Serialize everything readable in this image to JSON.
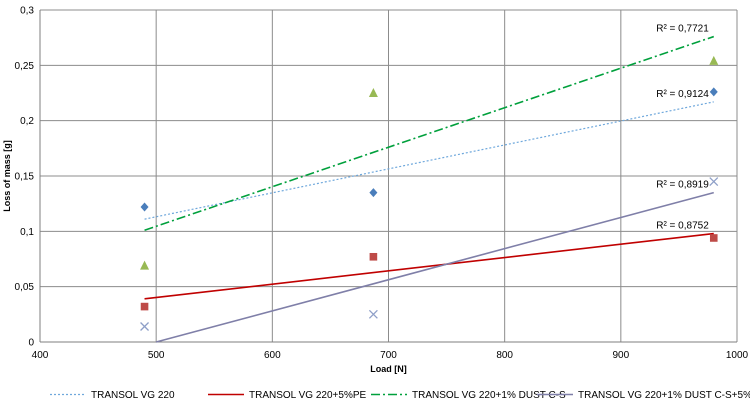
{
  "chart_data": {
    "type": "scatter",
    "xlabel": "Load  [N]",
    "ylabel": "Loss of mass  [g]",
    "xlim": [
      400,
      1000
    ],
    "ylim": [
      0,
      0.3
    ],
    "x_ticks": [
      "400",
      "500",
      "600",
      "700",
      "800",
      "900",
      "1000"
    ],
    "y_ticks": [
      "0",
      "0,05",
      "0,1",
      "0,15",
      "0,2",
      "0,25",
      "0,3"
    ],
    "grid": true,
    "legend_position": "bottom",
    "series": [
      {
        "name": "TRANSOL VG 220",
        "marker": "diamond",
        "color": "#4a7ebb",
        "trend_color": "#6fa8dc",
        "trend_style": "dotted",
        "points": [
          [
            490,
            0.122
          ],
          [
            687,
            0.135
          ],
          [
            980,
            0.226
          ]
        ],
        "trend": {
          "x": [
            490,
            980
          ],
          "y": [
            0.111,
            0.217
          ]
        },
        "r2": "R² = 0,9124"
      },
      {
        "name": "TRANSOL VG 220+5%PE",
        "marker": "square",
        "color": "#be4b48",
        "trend_color": "#c00000",
        "trend_style": "solid",
        "points": [
          [
            490,
            0.032
          ],
          [
            687,
            0.077
          ],
          [
            980,
            0.094
          ]
        ],
        "trend": {
          "x": [
            490,
            980
          ],
          "y": [
            0.039,
            0.098
          ]
        },
        "r2": "R² = 0,8752"
      },
      {
        "name": "TRANSOL VG 220+1% DUST C-S",
        "marker": "triangle",
        "color": "#98b954",
        "trend_color": "#00a03c",
        "trend_style": "dashdot",
        "points": [
          [
            490,
            0.069
          ],
          [
            687,
            0.225
          ],
          [
            980,
            0.254
          ]
        ],
        "trend": {
          "x": [
            490,
            980
          ],
          "y": [
            0.101,
            0.276
          ]
        },
        "r2": "R² = 0,7721"
      },
      {
        "name": "TRANSOL VG 220+1% DUST C-S+5% PE",
        "marker": "x",
        "color": "#8e9fc8",
        "trend_color": "#7f7fa8",
        "trend_style": "solid",
        "points": [
          [
            490,
            0.014
          ],
          [
            687,
            0.025
          ],
          [
            980,
            0.145
          ]
        ],
        "trend": {
          "x": [
            500,
            980
          ],
          "y": [
            0.0,
            0.135
          ]
        },
        "r2": "R² = 0,8919"
      }
    ]
  }
}
